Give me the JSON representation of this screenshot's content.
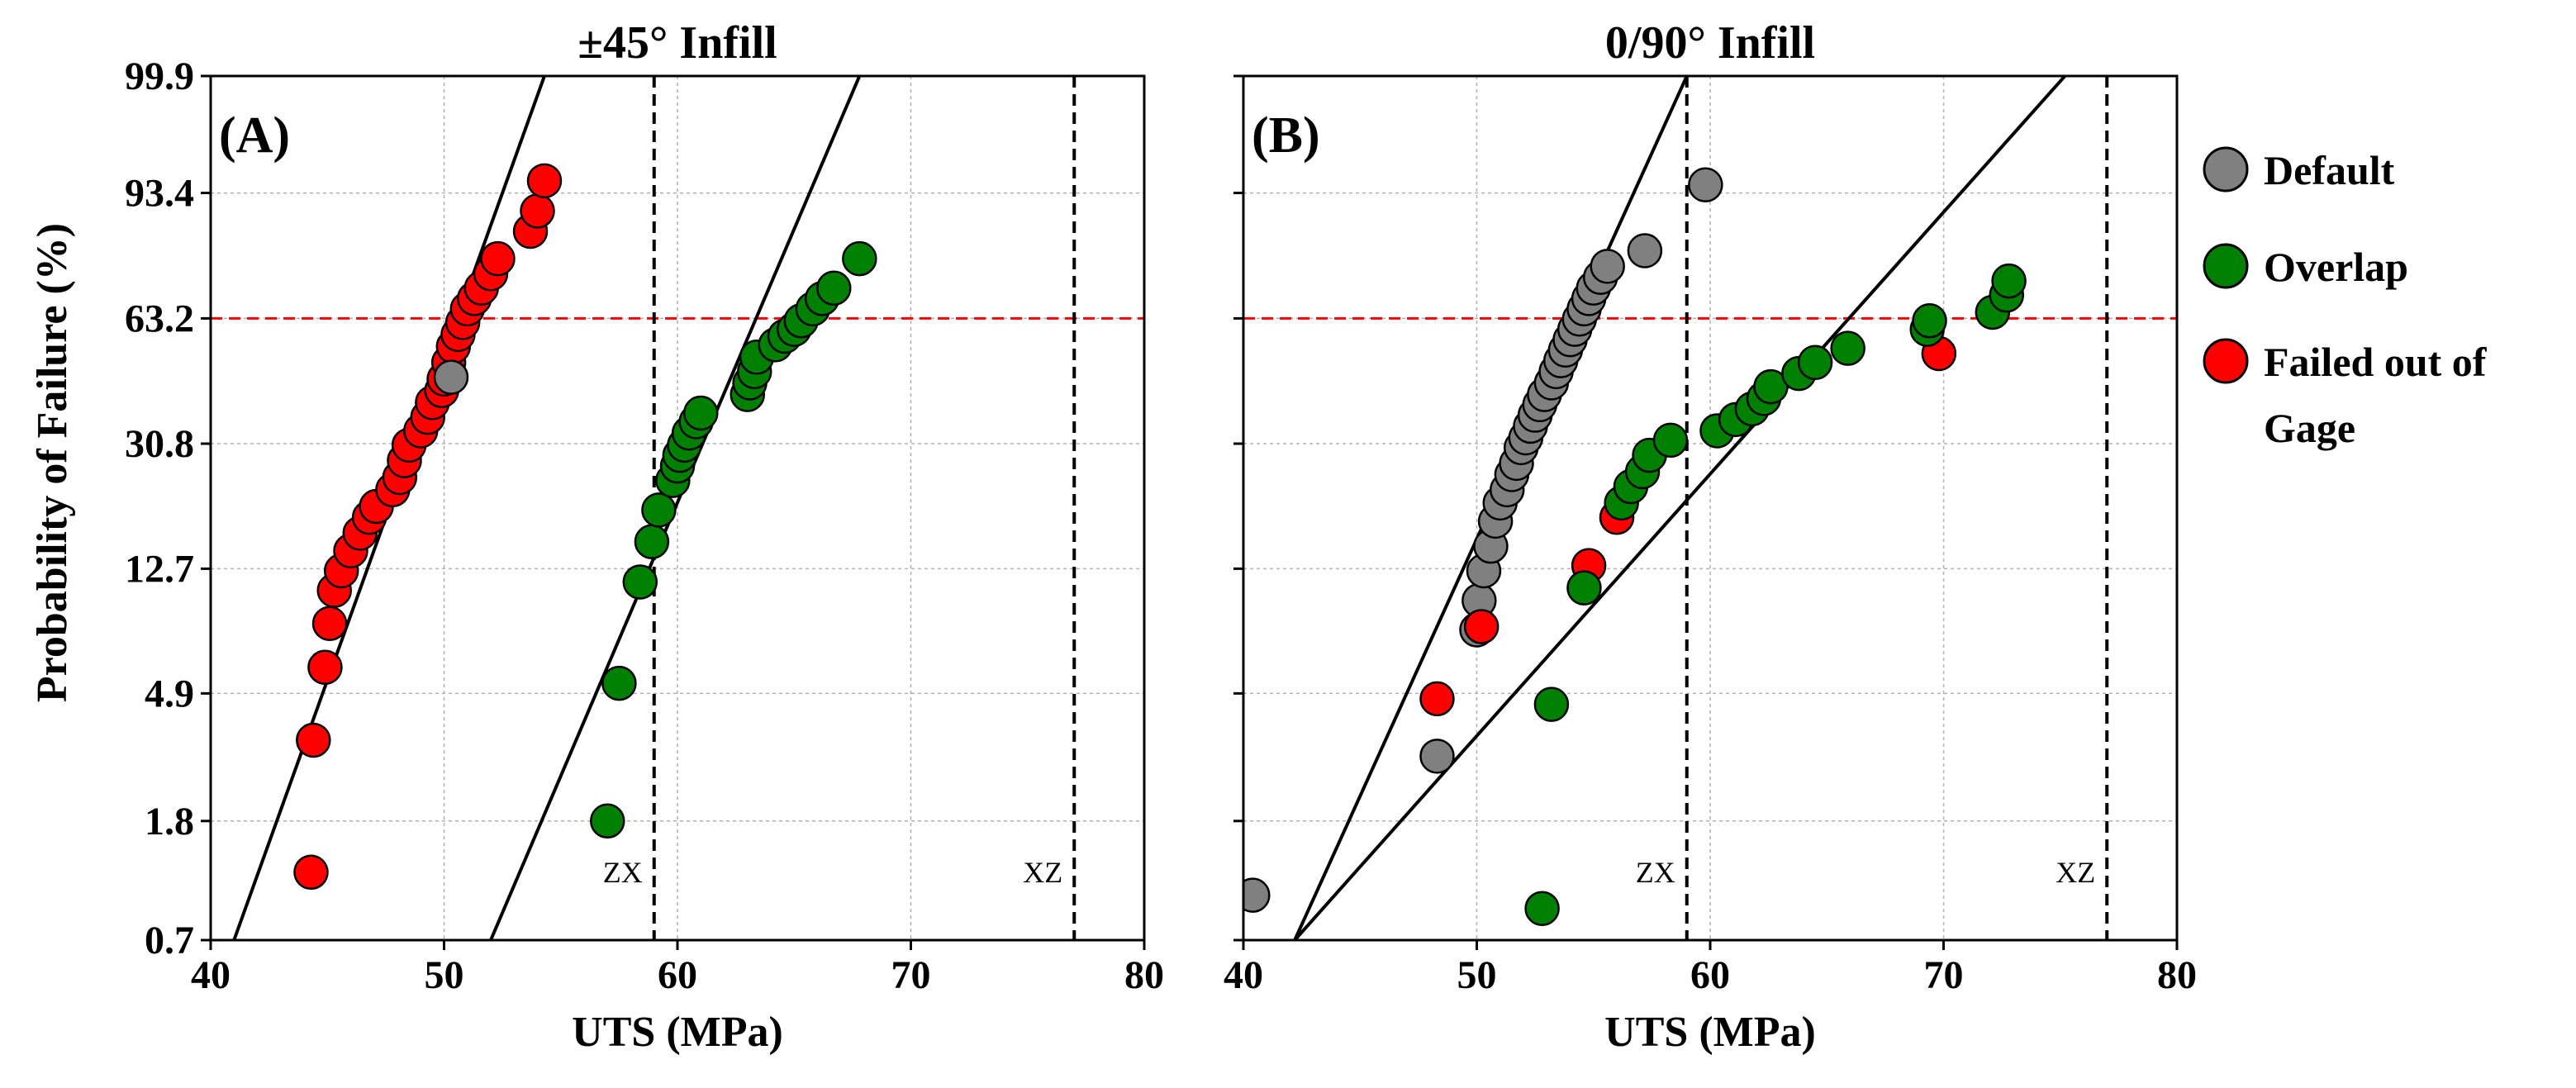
{
  "y_axis_title": "Probability of Failure (%)",
  "y_tick_labels": [
    "99.9",
    "93.4",
    "63.2",
    "30.8",
    "12.7",
    "4.9",
    "1.8",
    "0.7"
  ],
  "x_tick_labels": [
    "40",
    "50",
    "60",
    "70",
    "80"
  ],
  "legend": [
    {
      "label": "Default",
      "color": "#808080"
    },
    {
      "label": "Overlap",
      "color": "#008000"
    },
    {
      "label": "Failed out of",
      "color": "#ff0000",
      "label_line2": "Gage"
    }
  ],
  "chart_data": [
    {
      "type": "scatter",
      "panel_label": "(A)",
      "title": "±45° Infill",
      "xlabel": "UTS (MPa)",
      "ylabel": "Probability of Failure (%)",
      "xlim": [
        40,
        80
      ],
      "y_scale": "weibull",
      "ylim": [
        0.7,
        99.9
      ],
      "grid": true,
      "reference_line": {
        "y": 63.2,
        "color": "#ff0000",
        "style": "dashed"
      },
      "vertical_lines": [
        {
          "x": 59,
          "label": "ZX"
        },
        {
          "x": 77,
          "label": "XZ"
        }
      ],
      "fit_lines": [
        {
          "name": "",
          "points": [
            [
              41,
              0.7
            ],
            [
              54.3,
              99.9
            ]
          ]
        },
        {
          "name": "",
          "points": [
            [
              52,
              0.7
            ],
            [
              67.8,
              99.9
            ]
          ]
        }
      ],
      "series": [
        {
          "name": "Failed out of Gage",
          "color": "#ff0000",
          "points": [
            [
              44.3,
              1.2
            ],
            [
              44.4,
              3.4
            ],
            [
              44.9,
              6.0
            ],
            [
              45.1,
              8.4
            ],
            [
              45.3,
              10.8
            ],
            [
              45.6,
              12.5
            ],
            [
              46.0,
              14.5
            ],
            [
              46.4,
              16.5
            ],
            [
              46.8,
              18.5
            ],
            [
              47.1,
              20.0
            ],
            [
              47.8,
              22.5
            ],
            [
              48.1,
              24.5
            ],
            [
              48.3,
              27.5
            ],
            [
              48.5,
              30.5
            ],
            [
              49.0,
              33.5
            ],
            [
              49.3,
              36.5
            ],
            [
              49.5,
              40.0
            ],
            [
              49.9,
              43.0
            ],
            [
              50.0,
              46.0
            ],
            [
              50.2,
              50.5
            ],
            [
              50.4,
              55.0
            ],
            [
              50.6,
              58.5
            ],
            [
              50.8,
              62.0
            ],
            [
              51.0,
              66.0
            ],
            [
              51.3,
              69.0
            ],
            [
              51.6,
              72.0
            ],
            [
              52.0,
              76.0
            ],
            [
              52.3,
              80.0
            ],
            [
              53.7,
              86.5
            ],
            [
              54.0,
              90.5
            ],
            [
              54.3,
              95.0
            ]
          ]
        },
        {
          "name": "Default",
          "color": "#808080",
          "points": [
            [
              50.3,
              46.5
            ]
          ]
        },
        {
          "name": "Overlap",
          "color": "#008000",
          "points": [
            [
              57.0,
              1.8
            ],
            [
              57.5,
              5.3
            ],
            [
              58.4,
              11.5
            ],
            [
              58.9,
              15.5
            ],
            [
              59.2,
              19.5
            ],
            [
              59.8,
              24.0
            ],
            [
              60.0,
              26.5
            ],
            [
              60.1,
              28.5
            ],
            [
              60.3,
              30.5
            ],
            [
              60.5,
              33.0
            ],
            [
              60.8,
              35.5
            ],
            [
              61.0,
              37.5
            ],
            [
              63.0,
              42.0
            ],
            [
              63.1,
              45.0
            ],
            [
              63.3,
              48.0
            ],
            [
              63.4,
              52.0
            ],
            [
              64.2,
              55.5
            ],
            [
              64.6,
              58.0
            ],
            [
              65.0,
              60.0
            ],
            [
              65.3,
              62.5
            ],
            [
              65.8,
              66.0
            ],
            [
              66.2,
              69.0
            ],
            [
              66.7,
              72.0
            ],
            [
              67.8,
              80.0
            ]
          ]
        }
      ]
    },
    {
      "type": "scatter",
      "panel_label": "(B)",
      "title": "0/90° Infill",
      "xlabel": "UTS (MPa)",
      "ylabel": "Probability of Failure (%)",
      "xlim": [
        40,
        80
      ],
      "y_scale": "weibull",
      "ylim": [
        0.7,
        99.9
      ],
      "grid": true,
      "reference_line": {
        "y": 63.2,
        "color": "#ff0000",
        "style": "dashed"
      },
      "vertical_lines": [
        {
          "x": 59,
          "label": "ZX"
        },
        {
          "x": 77,
          "label": "XZ"
        }
      ],
      "fit_lines": [
        {
          "name": "",
          "points": [
            [
              42.2,
              0.7
            ],
            [
              59.0,
              99.9
            ]
          ]
        },
        {
          "name": "",
          "points": [
            [
              42.2,
              0.7
            ],
            [
              75.2,
              99.9
            ]
          ]
        }
      ],
      "series": [
        {
          "name": "Default",
          "color": "#808080",
          "points": [
            [
              40.4,
              1.0
            ],
            [
              48.3,
              3.0
            ],
            [
              50.0,
              8.0
            ],
            [
              50.1,
              10.0
            ],
            [
              50.3,
              12.5
            ],
            [
              50.6,
              15.0
            ],
            [
              50.8,
              18.0
            ],
            [
              51.0,
              20.5
            ],
            [
              51.3,
              22.5
            ],
            [
              51.5,
              25.0
            ],
            [
              51.7,
              27.0
            ],
            [
              51.9,
              30.0
            ],
            [
              52.1,
              32.0
            ],
            [
              52.3,
              34.5
            ],
            [
              52.5,
              37.0
            ],
            [
              52.7,
              39.5
            ],
            [
              52.9,
              42.0
            ],
            [
              53.2,
              45.0
            ],
            [
              53.4,
              48.0
            ],
            [
              53.6,
              51.0
            ],
            [
              53.8,
              54.0
            ],
            [
              54.0,
              57.0
            ],
            [
              54.2,
              60.0
            ],
            [
              54.4,
              63.0
            ],
            [
              54.6,
              66.0
            ],
            [
              54.8,
              69.0
            ],
            [
              55.0,
              72.0
            ],
            [
              55.3,
              75.0
            ],
            [
              55.6,
              78.0
            ],
            [
              57.2,
              82.0
            ],
            [
              59.8,
              94.5
            ]
          ]
        },
        {
          "name": "Failed out of Gage",
          "color": "#ff0000",
          "points": [
            [
              48.3,
              4.7
            ],
            [
              50.2,
              8.2
            ],
            [
              54.8,
              13.0
            ],
            [
              56.0,
              18.5
            ],
            [
              69.8,
              53.0
            ]
          ]
        },
        {
          "name": "Overlap",
          "color": "#008000",
          "points": [
            [
              52.8,
              0.9
            ],
            [
              53.2,
              4.5
            ],
            [
              54.6,
              11.0
            ],
            [
              56.2,
              20.5
            ],
            [
              56.6,
              23.0
            ],
            [
              57.1,
              25.5
            ],
            [
              57.4,
              28.5
            ],
            [
              58.3,
              31.5
            ],
            [
              60.3,
              33.5
            ],
            [
              61.1,
              36.0
            ],
            [
              61.8,
              38.5
            ],
            [
              62.3,
              41.0
            ],
            [
              62.6,
              44.0
            ],
            [
              63.8,
              47.5
            ],
            [
              64.5,
              50.5
            ],
            [
              65.9,
              54.5
            ],
            [
              69.3,
              60.0
            ],
            [
              69.4,
              62.5
            ],
            [
              72.1,
              65.0
            ],
            [
              72.7,
              70.0
            ],
            [
              72.8,
              74.0
            ]
          ]
        }
      ]
    }
  ]
}
